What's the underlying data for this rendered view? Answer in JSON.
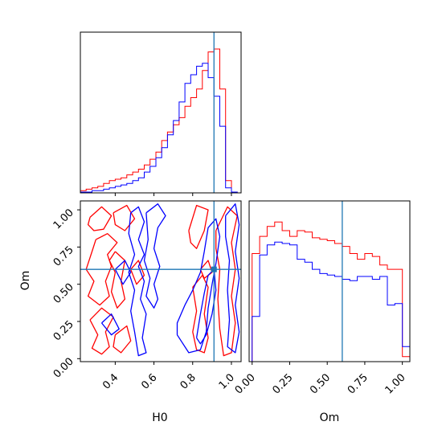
{
  "chart_data": {
    "type": "corner",
    "parameters": [
      "H0",
      "Om"
    ],
    "truths": {
      "H0": 0.91,
      "Om": 0.6
    },
    "colors": {
      "series_a": "#ff0000",
      "series_b": "#0000ff",
      "truth": "#1f77b4"
    },
    "panels": [
      {
        "id": "h0-histogram",
        "type": "step-histogram",
        "xlim": [
          0.22,
          1.05
        ],
        "show_x_ticks_labels": false,
        "show_y_ticks": false,
        "bin_edges": [
          0.22,
          0.25,
          0.28,
          0.31,
          0.34,
          0.37,
          0.4,
          0.43,
          0.46,
          0.49,
          0.52,
          0.55,
          0.58,
          0.61,
          0.64,
          0.67,
          0.7,
          0.73,
          0.76,
          0.79,
          0.82,
          0.85,
          0.88,
          0.91,
          0.94,
          0.97,
          1.0,
          1.03
        ],
        "series": [
          {
            "color_key": "series_a",
            "values": [
              0.01,
              0.02,
              0.03,
              0.04,
              0.06,
              0.08,
              0.09,
              0.1,
              0.12,
              0.14,
              0.16,
              0.19,
              0.23,
              0.28,
              0.36,
              0.42,
              0.47,
              0.52,
              0.6,
              0.66,
              0.72,
              0.85,
              0.98,
              1.0,
              0.72,
              0.08,
              0.0
            ]
          },
          {
            "color_key": "series_b",
            "values": [
              0.0,
              0.0,
              0.01,
              0.01,
              0.02,
              0.03,
              0.04,
              0.05,
              0.06,
              0.08,
              0.1,
              0.14,
              0.18,
              0.24,
              0.31,
              0.4,
              0.5,
              0.63,
              0.76,
              0.82,
              0.88,
              0.9,
              0.8,
              0.67,
              0.46,
              0.03,
              0.0
            ]
          }
        ]
      },
      {
        "id": "h0-om-contour",
        "type": "contour",
        "xlim": [
          0.22,
          1.05
        ],
        "ylim": [
          -0.02,
          1.06
        ],
        "xticks": [
          "0.4",
          "0.6",
          "0.8",
          "1.0"
        ],
        "yticks": [
          "0.00",
          "0.25",
          "0.50",
          "0.75",
          "1.00"
        ],
        "series": [
          {
            "color_key": "series_a",
            "contours": [
              [
                [
                  0.27,
                  0.95
                ],
                [
                  0.33,
                  1.02
                ],
                [
                  0.38,
                  0.96
                ],
                [
                  0.34,
                  0.87
                ],
                [
                  0.29,
                  0.86
                ],
                [
                  0.26,
                  0.9
                ],
                [
                  0.27,
                  0.95
                ]
              ],
              [
                [
                  0.3,
                  0.8
                ],
                [
                  0.36,
                  0.84
                ],
                [
                  0.41,
                  0.78
                ],
                [
                  0.36,
                  0.7
                ],
                [
                  0.38,
                  0.62
                ],
                [
                  0.35,
                  0.52
                ],
                [
                  0.37,
                  0.42
                ],
                [
                  0.32,
                  0.36
                ],
                [
                  0.26,
                  0.42
                ],
                [
                  0.29,
                  0.52
                ],
                [
                  0.25,
                  0.6
                ],
                [
                  0.28,
                  0.72
                ],
                [
                  0.3,
                  0.8
                ]
              ],
              [
                [
                  0.27,
                  0.26
                ],
                [
                  0.33,
                  0.34
                ],
                [
                  0.39,
                  0.28
                ],
                [
                  0.35,
                  0.18
                ],
                [
                  0.37,
                  0.08
                ],
                [
                  0.33,
                  0.03
                ],
                [
                  0.28,
                  0.07
                ],
                [
                  0.31,
                  0.16
                ],
                [
                  0.27,
                  0.26
                ]
              ],
              [
                [
                  0.39,
                  0.98
                ],
                [
                  0.46,
                  1.03
                ],
                [
                  0.5,
                  0.94
                ],
                [
                  0.45,
                  0.86
                ],
                [
                  0.4,
                  0.9
                ],
                [
                  0.39,
                  0.98
                ]
              ],
              [
                [
                  0.4,
                  0.72
                ],
                [
                  0.45,
                  0.66
                ],
                [
                  0.43,
                  0.52
                ],
                [
                  0.45,
                  0.4
                ],
                [
                  0.41,
                  0.34
                ],
                [
                  0.38,
                  0.45
                ],
                [
                  0.4,
                  0.58
                ],
                [
                  0.37,
                  0.66
                ],
                [
                  0.4,
                  0.72
                ]
              ],
              [
                [
                  0.4,
                  0.16
                ],
                [
                  0.46,
                  0.22
                ],
                [
                  0.48,
                  0.12
                ],
                [
                  0.43,
                  0.04
                ],
                [
                  0.39,
                  0.08
                ],
                [
                  0.4,
                  0.16
                ]
              ],
              [
                [
                  0.48,
                  0.6
                ],
                [
                  0.52,
                  0.66
                ],
                [
                  0.55,
                  0.56
                ],
                [
                  0.51,
                  0.5
                ],
                [
                  0.48,
                  0.6
                ]
              ],
              [
                [
                  0.78,
                  0.86
                ],
                [
                  0.82,
                  1.03
                ],
                [
                  0.88,
                  1.0
                ],
                [
                  0.86,
                  0.86
                ],
                [
                  0.82,
                  0.74
                ],
                [
                  0.79,
                  0.78
                ],
                [
                  0.78,
                  0.86
                ]
              ],
              [
                [
                  0.84,
                  0.6
                ],
                [
                  0.88,
                  0.66
                ],
                [
                  0.9,
                  0.58
                ],
                [
                  0.86,
                  0.54
                ],
                [
                  0.84,
                  0.6
                ]
              ],
              [
                [
                  0.8,
                  0.48
                ],
                [
                  0.85,
                  0.56
                ],
                [
                  0.88,
                  0.48
                ],
                [
                  0.86,
                  0.3
                ],
                [
                  0.88,
                  0.14
                ],
                [
                  0.86,
                  0.04
                ],
                [
                  0.82,
                  0.06
                ],
                [
                  0.8,
                  0.18
                ],
                [
                  0.82,
                  0.32
                ],
                [
                  0.8,
                  0.48
                ]
              ],
              [
                [
                  0.92,
                  0.86
                ],
                [
                  0.98,
                  1.02
                ],
                [
                  1.03,
                  0.96
                ],
                [
                  1.0,
                  0.78
                ],
                [
                  1.02,
                  0.6
                ],
                [
                  1.0,
                  0.42
                ],
                [
                  1.02,
                  0.24
                ],
                [
                  1.0,
                  0.04
                ],
                [
                  0.96,
                  0.02
                ],
                [
                  0.94,
                  0.2
                ],
                [
                  0.93,
                  0.4
                ],
                [
                  0.94,
                  0.6
                ],
                [
                  0.92,
                  0.74
                ],
                [
                  0.92,
                  0.86
                ]
              ]
            ]
          },
          {
            "color_key": "series_b",
            "contours": [
              [
                [
                  0.48,
                  0.98
                ],
                [
                  0.52,
                  1.02
                ],
                [
                  0.55,
                  0.92
                ],
                [
                  0.52,
                  0.8
                ],
                [
                  0.55,
                  0.7
                ],
                [
                  0.52,
                  0.62
                ],
                [
                  0.55,
                  0.52
                ],
                [
                  0.53,
                  0.4
                ],
                [
                  0.56,
                  0.3
                ],
                [
                  0.54,
                  0.14
                ],
                [
                  0.56,
                  0.04
                ],
                [
                  0.52,
                  0.02
                ],
                [
                  0.5,
                  0.18
                ],
                [
                  0.48,
                  0.32
                ],
                [
                  0.5,
                  0.46
                ],
                [
                  0.47,
                  0.58
                ],
                [
                  0.5,
                  0.7
                ],
                [
                  0.47,
                  0.84
                ],
                [
                  0.48,
                  0.98
                ]
              ],
              [
                [
                  0.4,
                  0.6
                ],
                [
                  0.45,
                  0.66
                ],
                [
                  0.48,
                  0.58
                ],
                [
                  0.44,
                  0.5
                ],
                [
                  0.4,
                  0.6
                ]
              ],
              [
                [
                  0.33,
                  0.24
                ],
                [
                  0.38,
                  0.3
                ],
                [
                  0.42,
                  0.2
                ],
                [
                  0.38,
                  0.16
                ],
                [
                  0.33,
                  0.24
                ]
              ],
              [
                [
                  0.56,
                  0.98
                ],
                [
                  0.62,
                  1.04
                ],
                [
                  0.66,
                  0.96
                ],
                [
                  0.62,
                  0.88
                ],
                [
                  0.6,
                  0.74
                ],
                [
                  0.63,
                  0.62
                ],
                [
                  0.6,
                  0.5
                ],
                [
                  0.62,
                  0.4
                ],
                [
                  0.6,
                  0.34
                ],
                [
                  0.56,
                  0.42
                ],
                [
                  0.58,
                  0.54
                ],
                [
                  0.55,
                  0.66
                ],
                [
                  0.57,
                  0.8
                ],
                [
                  0.56,
                  0.98
                ]
              ],
              [
                [
                  0.72,
                  0.16
                ],
                [
                  0.78,
                  0.04
                ],
                [
                  0.84,
                  0.06
                ],
                [
                  0.87,
                  0.18
                ],
                [
                  0.88,
                  0.34
                ],
                [
                  0.9,
                  0.5
                ],
                [
                  0.92,
                  0.64
                ],
                [
                  0.94,
                  0.82
                ],
                [
                  0.92,
                  0.94
                ],
                [
                  0.88,
                  0.88
                ],
                [
                  0.86,
                  0.72
                ],
                [
                  0.84,
                  0.58
                ],
                [
                  0.8,
                  0.46
                ],
                [
                  0.76,
                  0.36
                ],
                [
                  0.72,
                  0.24
                ],
                [
                  0.72,
                  0.16
                ]
              ],
              [
                [
                  0.82,
                  0.14
                ],
                [
                  0.84,
                  0.3
                ],
                [
                  0.86,
                  0.44
                ],
                [
                  0.88,
                  0.56
                ],
                [
                  0.91,
                  0.6
                ],
                [
                  0.92,
                  0.46
                ],
                [
                  0.9,
                  0.3
                ],
                [
                  0.87,
                  0.16
                ],
                [
                  0.84,
                  0.1
                ],
                [
                  0.82,
                  0.14
                ]
              ],
              [
                [
                  0.97,
                  0.96
                ],
                [
                  1.02,
                  1.04
                ],
                [
                  1.04,
                  0.9
                ],
                [
                  1.02,
                  0.72
                ],
                [
                  1.04,
                  0.54
                ],
                [
                  1.02,
                  0.36
                ],
                [
                  1.04,
                  0.18
                ],
                [
                  1.02,
                  0.04
                ],
                [
                  0.98,
                  0.08
                ],
                [
                  0.99,
                  0.26
                ],
                [
                  0.98,
                  0.46
                ],
                [
                  0.99,
                  0.66
                ],
                [
                  0.97,
                  0.82
                ],
                [
                  0.97,
                  0.96
                ]
              ]
            ]
          }
        ]
      },
      {
        "id": "om-histogram",
        "type": "step-histogram",
        "xlim": [
          -0.02,
          1.05
        ],
        "xticks": [
          "0.00",
          "0.25",
          "0.50",
          "0.75",
          "1.00"
        ],
        "show_y_ticks": false,
        "bin_edges": [
          0.0,
          0.05,
          0.1,
          0.15,
          0.2,
          0.25,
          0.3,
          0.35,
          0.4,
          0.45,
          0.5,
          0.55,
          0.6,
          0.65,
          0.7,
          0.75,
          0.8,
          0.85,
          0.9,
          0.95,
          1.0,
          1.05
        ],
        "series": [
          {
            "color_key": "series_a",
            "values": [
              0.75,
              0.87,
              0.94,
              0.97,
              0.91,
              0.87,
              0.91,
              0.9,
              0.86,
              0.85,
              0.84,
              0.82,
              0.8,
              0.75,
              0.71,
              0.75,
              0.73,
              0.67,
              0.64,
              0.64,
              0.03
            ]
          },
          {
            "color_key": "series_b",
            "values": [
              0.31,
              0.74,
              0.81,
              0.83,
              0.82,
              0.81,
              0.71,
              0.69,
              0.64,
              0.61,
              0.6,
              0.59,
              0.57,
              0.56,
              0.59,
              0.59,
              0.57,
              0.59,
              0.39,
              0.4,
              0.1
            ]
          }
        ]
      }
    ],
    "xlabels": {
      "bottom_left": "H0",
      "bottom_right": "Om"
    },
    "ylabels": {
      "middle_left": "Om"
    }
  }
}
